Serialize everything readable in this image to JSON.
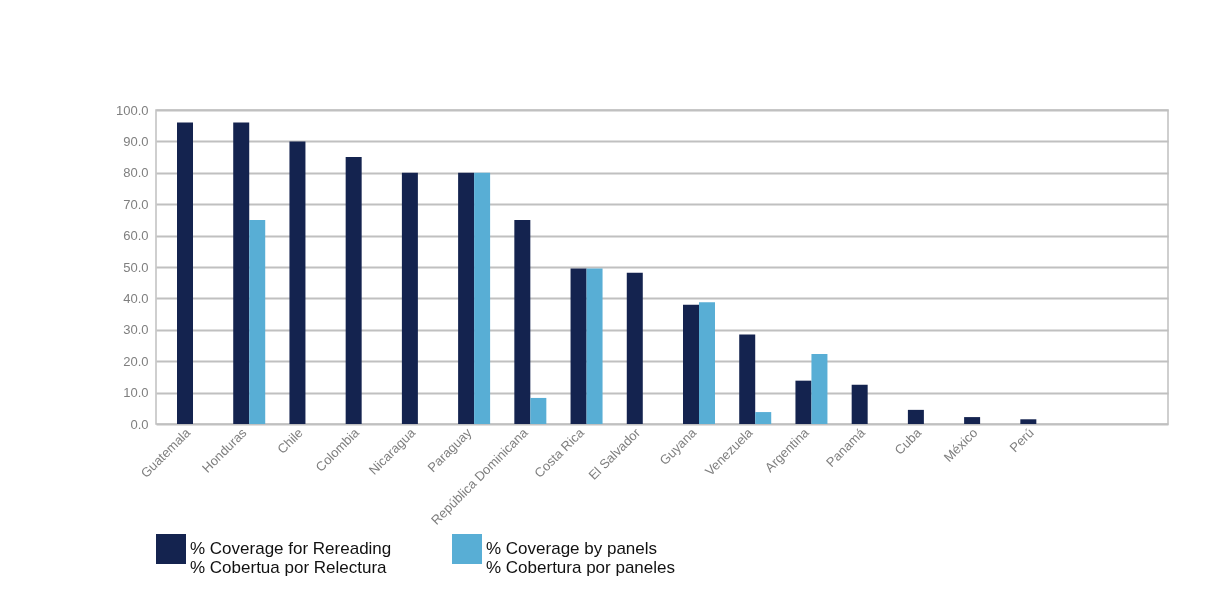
{
  "chart_data": {
    "type": "bar",
    "categories": [
      "Guatemala",
      "Honduras",
      "Chile",
      "Colombia",
      "Nicaragua",
      "Paraguay",
      "República Dominicana",
      "Costa Rica",
      "El Salvador",
      "Guyana",
      "Venezuela",
      "Argentina",
      "Panamá",
      "Cuba",
      "México",
      "Perú",
      null,
      null
    ],
    "series": [
      {
        "name": "% Coverage for Rereading\n% Cobertua por Relectura",
        "color": "#14234f",
        "values": [
          96.0,
          96.0,
          90.0,
          85.0,
          80.0,
          80.0,
          65.0,
          49.5,
          48.2,
          38.0,
          28.5,
          13.8,
          12.5,
          4.5,
          2.2,
          1.5,
          null,
          null
        ]
      },
      {
        "name": "% Coverage by panels\n% Cobertura por paneles",
        "color": "#58aed5",
        "values": [
          null,
          65.0,
          null,
          null,
          null,
          80.0,
          8.3,
          49.5,
          null,
          38.8,
          3.8,
          22.3,
          null,
          null,
          null,
          null,
          null,
          null
        ]
      }
    ],
    "ylim": [
      0,
      100
    ],
    "yticks": [
      {
        "value": 0,
        "label": "0.0"
      },
      {
        "value": 10,
        "label": "10.0"
      },
      {
        "value": 20,
        "label": "20.0"
      },
      {
        "value": 30,
        "label": "30.0"
      },
      {
        "value": 40,
        "label": "40.0"
      },
      {
        "value": 50,
        "label": "50.0"
      },
      {
        "value": 60,
        "label": "60.0"
      },
      {
        "value": 70,
        "label": "70.0"
      },
      {
        "value": 80,
        "label": "80.0"
      },
      {
        "value": 90,
        "label": "90.0"
      },
      {
        "value": 100,
        "label": "100.0"
      }
    ],
    "grid": "y",
    "legend": "bottom"
  }
}
